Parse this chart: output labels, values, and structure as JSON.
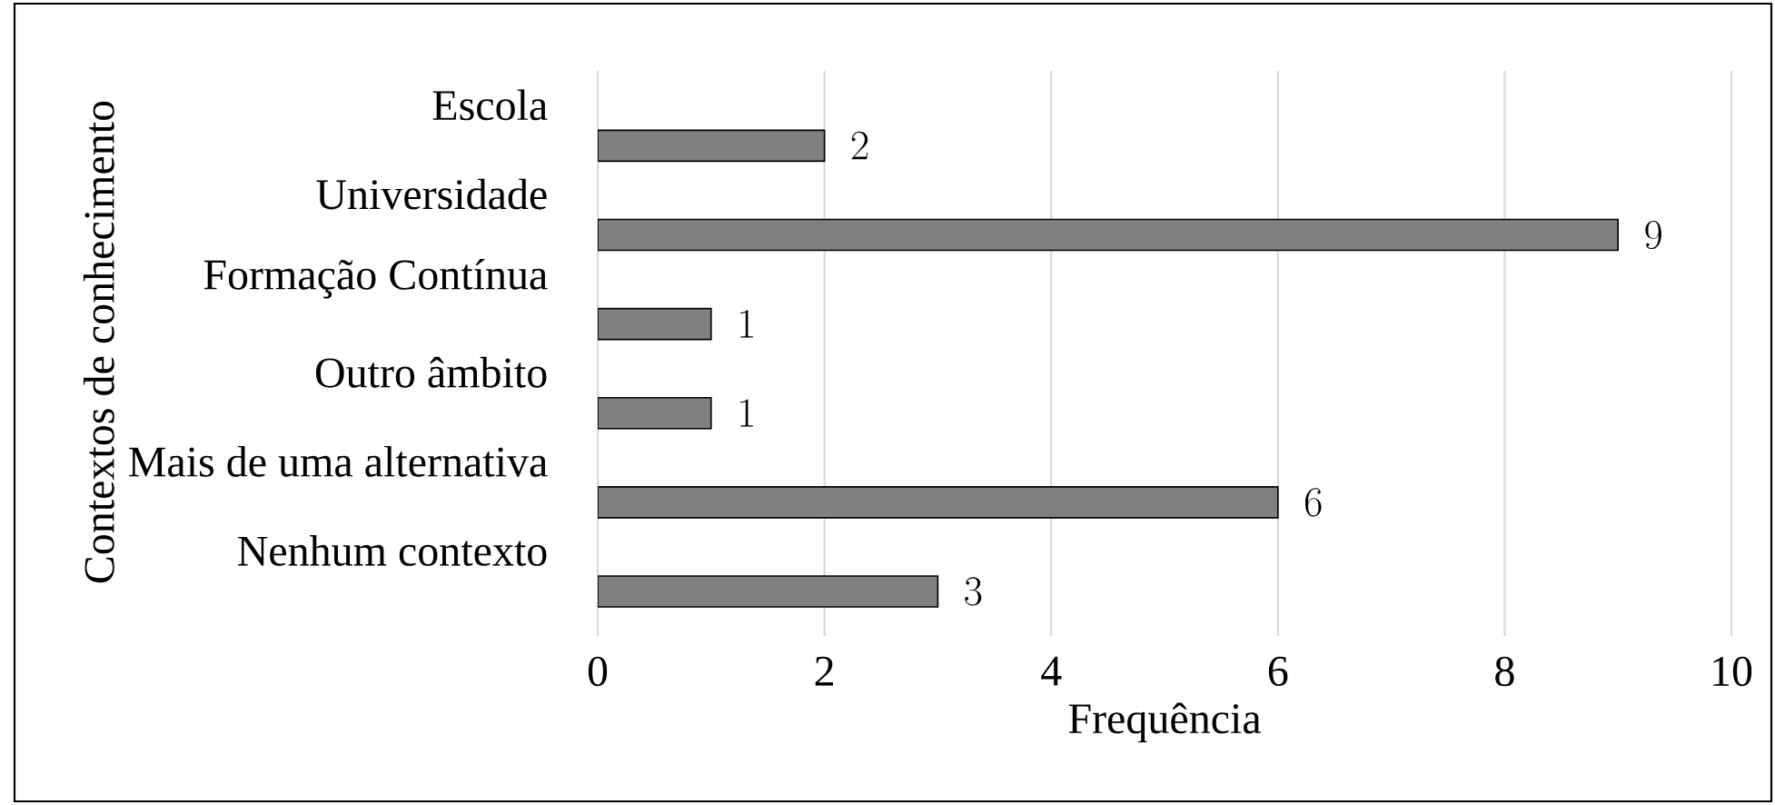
{
  "chart_data": {
    "type": "bar",
    "orientation": "horizontal",
    "categories": [
      "Escola",
      "Universidade",
      "Formação Contínua",
      "Outro âmbito",
      "Mais de uma alternativa",
      "Nenhum contexto"
    ],
    "values": [
      2,
      9,
      1,
      1,
      6,
      3
    ],
    "color": "#808080",
    "xlabel": "Frequência",
    "ylabel": "Contextos de conhecimento",
    "xlim": [
      0,
      10
    ],
    "xticks": [
      0,
      2,
      4,
      6,
      8,
      10
    ],
    "grid": "x",
    "data_labels": true
  }
}
